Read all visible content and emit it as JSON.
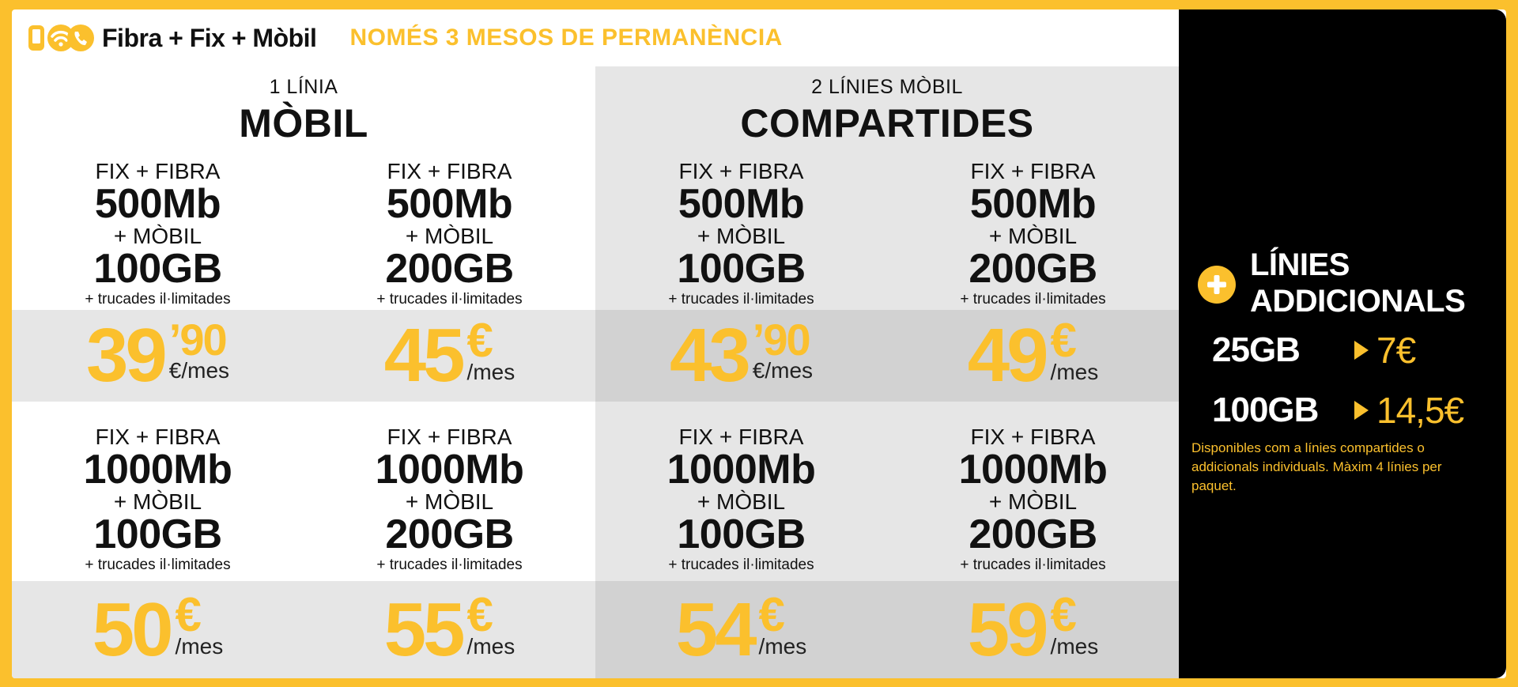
{
  "header": {
    "brand": "Fibra + Fix + Mòbil",
    "tagline": "NOMÉS 3 MESOS DE PERMANÈNCIA"
  },
  "colors": {
    "accent": "#fbc02d",
    "text": "#111111",
    "panel": "#000000"
  },
  "sections": [
    {
      "sub": "1 LÍNIA",
      "main": "MÒBIL"
    },
    {
      "sub": "2 LÍNIES MÒBIL",
      "main": "COMPARTIDES"
    }
  ],
  "plans": [
    {
      "fix_label": "FIX + FIBRA",
      "speed": "500Mb",
      "mobile_label": "+ MÒBIL",
      "data": "100GB",
      "calls": "+ trucades il·limitades",
      "price_int": "39",
      "price_dec": "’90",
      "unit": "€/mes"
    },
    {
      "fix_label": "FIX + FIBRA",
      "speed": "500Mb",
      "mobile_label": "+ MÒBIL",
      "data": "200GB",
      "calls": "+ trucades il·limitades",
      "price_int": "45",
      "price_dec": "€",
      "unit": "/mes"
    },
    {
      "fix_label": "FIX + FIBRA",
      "speed": "500Mb",
      "mobile_label": "+ MÒBIL",
      "data": "100GB",
      "calls": "+ trucades il·limitades",
      "price_int": "43",
      "price_dec": "’90",
      "unit": "€/mes"
    },
    {
      "fix_label": "FIX + FIBRA",
      "speed": "500Mb",
      "mobile_label": "+ MÒBIL",
      "data": "200GB",
      "calls": "+ trucades il·limitades",
      "price_int": "49",
      "price_dec": "€",
      "unit": "/mes"
    },
    {
      "fix_label": "FIX + FIBRA",
      "speed": "1000Mb",
      "mobile_label": "+ MÒBIL",
      "data": "100GB",
      "calls": "+ trucades il·limitades",
      "price_int": "50",
      "price_dec": "€",
      "unit": "/mes"
    },
    {
      "fix_label": "FIX + FIBRA",
      "speed": "1000Mb",
      "mobile_label": "+ MÒBIL",
      "data": "200GB",
      "calls": "+ trucades il·limitades",
      "price_int": "55",
      "price_dec": "€",
      "unit": "/mes"
    },
    {
      "fix_label": "FIX + FIBRA",
      "speed": "1000Mb",
      "mobile_label": "+ MÒBIL",
      "data": "100GB",
      "calls": "+ trucades il·limitades",
      "price_int": "54",
      "price_dec": "€",
      "unit": "/mes"
    },
    {
      "fix_label": "FIX + FIBRA",
      "speed": "1000Mb",
      "mobile_label": "+ MÒBIL",
      "data": "200GB",
      "calls": "+ trucades il·limitades",
      "price_int": "59",
      "price_dec": "€",
      "unit": "/mes"
    }
  ],
  "extra_lines": {
    "title_line1": "LÍNIES",
    "title_line2": "ADDICIONALS",
    "options": [
      {
        "data": "25GB",
        "price": "7€"
      },
      {
        "data": "100GB",
        "price": "14,5€"
      }
    ],
    "note": "Disponibles com a línies compartides o addicionals individuals. Màxim 4 línies per paquet."
  }
}
